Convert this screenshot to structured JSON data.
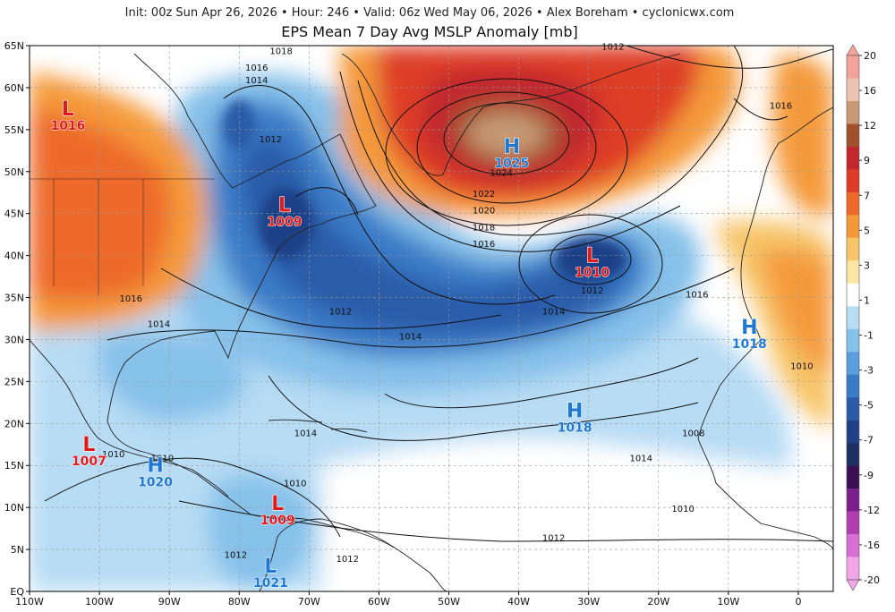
{
  "header": {
    "subtitle": "Init: 00z Sun Apr 26, 2026 • Hour: 246 • Valid: 06z Wed May 06, 2026 • Alex Boreham • cyclonicwx.com",
    "title": "EPS Mean 7 Day Avg MSLP Anomaly [mb]"
  },
  "axes": {
    "lon_labels": [
      "110W",
      "100W",
      "90W",
      "80W",
      "70W",
      "60W",
      "50W",
      "40W",
      "30W",
      "20W",
      "10W",
      "0"
    ],
    "lon_values": [
      -110,
      -100,
      -90,
      -80,
      -70,
      -60,
      -50,
      -40,
      -30,
      -20,
      -10,
      0
    ],
    "lat_labels": [
      "EQ",
      "5N",
      "10N",
      "15N",
      "20N",
      "25N",
      "30N",
      "35N",
      "40N",
      "45N",
      "50N",
      "55N",
      "60N",
      "65N"
    ],
    "lat_values": [
      0,
      5,
      10,
      15,
      20,
      25,
      30,
      35,
      40,
      45,
      50,
      55,
      60,
      65
    ],
    "lon_range": [
      -110,
      5
    ],
    "lat_range": [
      0,
      65
    ]
  },
  "colorbar": {
    "labels": [
      "20",
      "16",
      "12",
      "9",
      "7",
      "5",
      "3",
      "1",
      "-1",
      "-3",
      "-5",
      "-7",
      "-9",
      "-12",
      "-16",
      "-20"
    ],
    "colors": [
      "#f4a39b",
      "#ecc2b1",
      "#c79a75",
      "#a0522d",
      "#c1272d",
      "#de3c26",
      "#ee6a2c",
      "#f59a3a",
      "#f7c569",
      "#fbe7a3",
      "#ffffff",
      "#b7dcf4",
      "#86c1ea",
      "#5a9edd",
      "#3a7bc8",
      "#2a5ba8",
      "#1f3f86",
      "#1c2f63",
      "#3b0f52",
      "#7a1f8c",
      "#b23db0",
      "#d86fd3",
      "#f0a6e8"
    ]
  },
  "pressure_centers": [
    {
      "type": "L",
      "value": "1016",
      "lon": -104.5,
      "lat": 56.5,
      "color": "red"
    },
    {
      "type": "L",
      "value": "1009",
      "lon": -73.5,
      "lat": 45.0,
      "color": "red"
    },
    {
      "type": "H",
      "value": "1025",
      "lon": -41.0,
      "lat": 52.0,
      "color": "blue"
    },
    {
      "type": "L",
      "value": "1010",
      "lon": -29.5,
      "lat": 39.0,
      "color": "red"
    },
    {
      "type": "H",
      "value": "1018",
      "lon": -7.0,
      "lat": 30.5,
      "color": "blue"
    },
    {
      "type": "H",
      "value": "1018",
      "lon": -32.0,
      "lat": 20.5,
      "color": "blue"
    },
    {
      "type": "L",
      "value": "1007",
      "lon": -101.5,
      "lat": 16.5,
      "color": "red"
    },
    {
      "type": "H",
      "value": "1020",
      "lon": -92.0,
      "lat": 14.0,
      "color": "blue"
    },
    {
      "type": "L",
      "value": "1009",
      "lon": -74.5,
      "lat": 9.5,
      "color": "red"
    },
    {
      "type": "L",
      "value": "1021",
      "lon": -75.5,
      "lat": 2.0,
      "color": "blue"
    }
  ],
  "isobar_labels": [
    {
      "text": "1018",
      "lon": -74.0,
      "lat": 64.0
    },
    {
      "text": "1012",
      "lon": -26.5,
      "lat": 64.5
    },
    {
      "text": "1016",
      "lon": -77.5,
      "lat": 62.0
    },
    {
      "text": "1014",
      "lon": -77.5,
      "lat": 60.5
    },
    {
      "text": "1016",
      "lon": -2.5,
      "lat": 57.5
    },
    {
      "text": "1012",
      "lon": -75.5,
      "lat": 53.5
    },
    {
      "text": "1024",
      "lon": -42.5,
      "lat": 49.5
    },
    {
      "text": "1022",
      "lon": -45.0,
      "lat": 47.0
    },
    {
      "text": "1020",
      "lon": -45.0,
      "lat": 45.0
    },
    {
      "text": "1018",
      "lon": -45.0,
      "lat": 43.0
    },
    {
      "text": "1016",
      "lon": -45.0,
      "lat": 41.0
    },
    {
      "text": "1012",
      "lon": -29.5,
      "lat": 35.5
    },
    {
      "text": "1016",
      "lon": -14.5,
      "lat": 35.0
    },
    {
      "text": "1014",
      "lon": -35.0,
      "lat": 33.0
    },
    {
      "text": "1016",
      "lon": -95.5,
      "lat": 34.5
    },
    {
      "text": "1012",
      "lon": -65.5,
      "lat": 33.0
    },
    {
      "text": "1014",
      "lon": -91.5,
      "lat": 31.5
    },
    {
      "text": "1014",
      "lon": -55.5,
      "lat": 30.0
    },
    {
      "text": "1010",
      "lon": 0.5,
      "lat": 26.5
    },
    {
      "text": "1008",
      "lon": -15.0,
      "lat": 18.5
    },
    {
      "text": "1014",
      "lon": -70.5,
      "lat": 18.5
    },
    {
      "text": "1010",
      "lon": -98.0,
      "lat": 16.0
    },
    {
      "text": "1010",
      "lon": -91.0,
      "lat": 15.5
    },
    {
      "text": "1014",
      "lon": -22.5,
      "lat": 15.5
    },
    {
      "text": "1010",
      "lon": -72.0,
      "lat": 12.5
    },
    {
      "text": "1010",
      "lon": -16.5,
      "lat": 9.5
    },
    {
      "text": "1012",
      "lon": -35.0,
      "lat": 6.0
    },
    {
      "text": "1012",
      "lon": -80.5,
      "lat": 4.0
    },
    {
      "text": "1012",
      "lon": -64.5,
      "lat": 3.5
    }
  ]
}
